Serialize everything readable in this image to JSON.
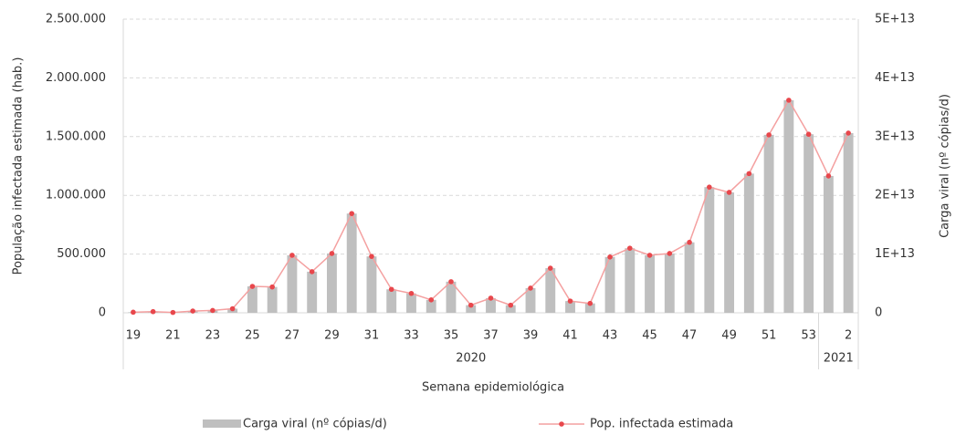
{
  "chart_data": {
    "type": "bar-line",
    "categories": [
      "19",
      null,
      "21",
      null,
      "23",
      null,
      "25",
      null,
      "27",
      null,
      "29",
      null,
      "31",
      null,
      "33",
      null,
      "35",
      null,
      "37",
      null,
      "39",
      null,
      "41",
      null,
      "43",
      null,
      "45",
      null,
      "47",
      null,
      "49",
      null,
      "51",
      null,
      "53",
      null,
      "2"
    ],
    "x_groups": [
      {
        "label": "2020",
        "count": 35
      },
      {
        "label": "2021",
        "count": 2
      }
    ],
    "xlabel": "Semana epidemiológica",
    "ylabel": "População infectada estimada (hab.)",
    "y2label": "Carga viral (nº cópias/d)",
    "ylim": [
      0,
      2500000
    ],
    "yticks": [
      0,
      {
        "value": 500000,
        "label": "500.000"
      },
      {
        "value": 1000000,
        "label": "1.000.000"
      },
      {
        "value": 1500000,
        "label": "1.500.000"
      },
      {
        "value": 2000000,
        "label": "2.000.000"
      },
      {
        "value": 2500000,
        "label": "2.500.000"
      }
    ],
    "y2lim": [
      0,
      50000000000000
    ],
    "y2ticks": [
      0,
      {
        "value": 10000000000000,
        "label": "1E+13"
      },
      {
        "value": 20000000000000,
        "label": "2E+13"
      },
      {
        "value": 30000000000000,
        "label": "3E+13"
      },
      {
        "value": 40000000000000,
        "label": "4E+13"
      },
      {
        "value": 50000000000000,
        "label": "5E+13"
      }
    ],
    "grid": true,
    "series": [
      {
        "name": "Carga viral (nº cópias/d)",
        "type": "bar",
        "axis": "y2",
        "color": "#bfbfbf",
        "values": [
          100000000000,
          200000000000,
          60000000000,
          300000000000,
          400000000000,
          700000000000,
          4500000000000,
          4400000000000,
          9800000000000,
          7000000000000,
          10100000000000,
          16900000000000,
          9600000000000,
          4000000000000,
          3300000000000,
          2200000000000,
          5300000000000,
          1300000000000,
          2500000000000,
          1300000000000,
          4200000000000,
          7600000000000,
          2000000000000,
          1600000000000,
          9500000000000,
          11000000000000,
          9800000000000,
          10100000000000,
          12000000000000,
          21400000000000,
          20500000000000,
          23700000000000,
          30300000000000,
          36200000000000,
          30400000000000,
          23300000000000,
          30600000000000
        ]
      },
      {
        "name": "Pop. infectada estimada",
        "type": "line",
        "axis": "y",
        "color": "#f4a0a0",
        "marker_color": "#e8474c",
        "values": [
          5000,
          10000,
          3000,
          15000,
          20000,
          35000,
          225000,
          220000,
          490000,
          350000,
          505000,
          845000,
          480000,
          200000,
          165000,
          110000,
          265000,
          65000,
          125000,
          65000,
          210000,
          380000,
          100000,
          80000,
          475000,
          550000,
          490000,
          505000,
          600000,
          1070000,
          1025000,
          1185000,
          1515000,
          1810000,
          1520000,
          1165000,
          1530000
        ]
      }
    ]
  }
}
